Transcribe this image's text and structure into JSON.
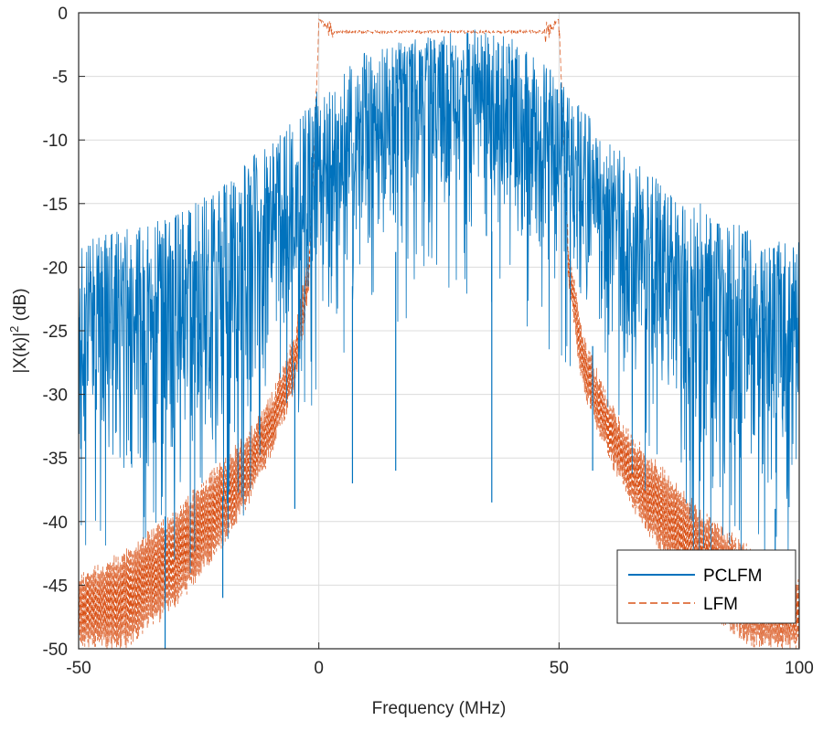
{
  "chart_data": {
    "type": "line",
    "title": "",
    "xlabel": "Frequency (MHz)",
    "ylabel": "|X(k)|",
    "ylabel_superscript": "2",
    "ylabel_suffix": " (dB)",
    "xlim": [
      -50,
      100
    ],
    "ylim": [
      -50,
      0
    ],
    "xticks": [
      -50,
      0,
      50,
      100
    ],
    "yticks": [
      0,
      -5,
      -10,
      -15,
      -20,
      -25,
      -30,
      -35,
      -40,
      -45,
      -50
    ],
    "grid": true,
    "legend_position": "bottom-right",
    "series": [
      {
        "name": "PCLFM",
        "color": "#0072bd",
        "style": "solid",
        "envelope": {
          "x": [
            -50,
            -40,
            -30,
            -20,
            -10,
            0,
            10,
            20,
            30,
            40,
            50,
            60,
            70,
            80,
            90,
            100
          ],
          "upper": [
            -18,
            -17,
            -16,
            -13,
            -10,
            -6,
            -3,
            -2,
            -1,
            -2,
            -5,
            -10,
            -13,
            -15,
            -17,
            -18
          ],
          "lower": [
            -36,
            -38,
            -40,
            -38,
            -30,
            -25,
            -20,
            -18,
            -16,
            -18,
            -22,
            -28,
            -34,
            -38,
            -40,
            -38
          ]
        },
        "notable_dips": [
          {
            "x": -32,
            "y": -50
          },
          {
            "x": -20,
            "y": -46
          },
          {
            "x": -5,
            "y": -39
          },
          {
            "x": 7,
            "y": -37
          },
          {
            "x": 16,
            "y": -36
          },
          {
            "x": 36,
            "y": -38.5
          },
          {
            "x": 57,
            "y": -36
          },
          {
            "x": 95,
            "y": -45
          }
        ]
      },
      {
        "name": "LFM",
        "color": "#d95319",
        "style": "dashed",
        "passband": {
          "x_start": 0,
          "x_end": 50,
          "level": -1.5
        },
        "edge_ripple_peak": -0.5,
        "rolloff": {
          "x": [
            -50,
            -40,
            -30,
            -20,
            -15,
            -10,
            -5,
            -2,
            0
          ],
          "upper": [
            -44,
            -42,
            -39,
            -35,
            -33,
            -30,
            -25,
            -18,
            -1
          ],
          "lower": [
            -50,
            -50,
            -47,
            -42,
            -39,
            -35,
            -30,
            -22,
            -1
          ]
        }
      }
    ]
  }
}
